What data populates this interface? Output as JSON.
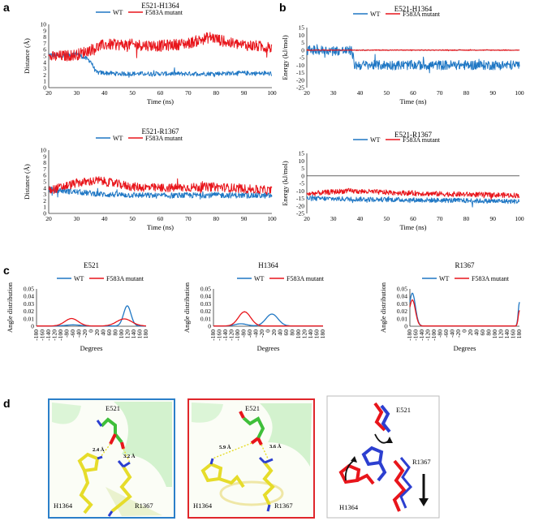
{
  "colors": {
    "wt": "#1f77c4",
    "mut": "#e8151b",
    "box_d1": "#2b7fc9",
    "box_d2": "#e0262b",
    "box_d3": "#bbbbbb"
  },
  "panel_letters": {
    "a": "a",
    "b": "b",
    "c": "c",
    "d": "d"
  },
  "legend": {
    "wt": "WT",
    "mut": "F583A mutant"
  },
  "chart_data": [
    {
      "id": "a1",
      "type": "line",
      "title": "E521-H1364",
      "xlabel": "Time (ns)",
      "ylabel": "Distance (Å)",
      "xlim": [
        20,
        100
      ],
      "ylim": [
        0,
        10
      ],
      "xticks": [
        20,
        30,
        40,
        50,
        60,
        70,
        80,
        90,
        100
      ],
      "yticks": [
        0,
        1,
        2,
        3,
        4,
        5,
        6,
        7,
        8,
        9,
        10
      ],
      "series": [
        {
          "name": "WT",
          "profile": [
            [
              20,
              5.2
            ],
            [
              25,
              5.0
            ],
            [
              30,
              5.4
            ],
            [
              35,
              4.2
            ],
            [
              37,
              2.4
            ],
            [
              45,
              2.2
            ],
            [
              60,
              2.2
            ],
            [
              75,
              2.2
            ],
            [
              90,
              2.3
            ],
            [
              100,
              2.2
            ]
          ],
          "noise": 0.35
        },
        {
          "name": "F583A mutant",
          "profile": [
            [
              20,
              4.8
            ],
            [
              30,
              5.2
            ],
            [
              40,
              6.8
            ],
            [
              50,
              6.8
            ],
            [
              60,
              6.6
            ],
            [
              70,
              7.0
            ],
            [
              78,
              8.0
            ],
            [
              85,
              7.0
            ],
            [
              100,
              6.3
            ]
          ],
          "noise": 0.9
        }
      ]
    },
    {
      "id": "a2",
      "type": "line",
      "title": "E521-R1367",
      "xlabel": "Time (ns)",
      "ylabel": "Distance (Å)",
      "xlim": [
        20,
        100
      ],
      "ylim": [
        0,
        10
      ],
      "xticks": [
        20,
        30,
        40,
        50,
        60,
        70,
        80,
        90,
        100
      ],
      "yticks": [
        0,
        1,
        2,
        3,
        4,
        5,
        6,
        7,
        8,
        9,
        10
      ],
      "series": [
        {
          "name": "WT",
          "profile": [
            [
              20,
              3.8
            ],
            [
              30,
              3.4
            ],
            [
              40,
              3.0
            ],
            [
              60,
              2.8
            ],
            [
              80,
              2.9
            ],
            [
              100,
              2.8
            ]
          ],
          "noise": 0.45
        },
        {
          "name": "F583A mutant",
          "profile": [
            [
              20,
              3.6
            ],
            [
              30,
              4.8
            ],
            [
              38,
              5.2
            ],
            [
              50,
              4.2
            ],
            [
              60,
              4.0
            ],
            [
              80,
              4.2
            ],
            [
              100,
              3.6
            ]
          ],
          "noise": 0.7
        }
      ]
    },
    {
      "id": "b1",
      "type": "line",
      "title": "E521-H1364",
      "xlabel": "Time (ns)",
      "ylabel": "Energy (kJ/mol)",
      "xlim": [
        20,
        100
      ],
      "ylim": [
        -25,
        15
      ],
      "xticks": [
        20,
        30,
        40,
        50,
        60,
        70,
        80,
        90,
        100
      ],
      "yticks": [
        15,
        10,
        5,
        0,
        -5,
        -10,
        -15,
        -20,
        -25
      ],
      "series": [
        {
          "name": "WT",
          "profile": [
            [
              20,
              0
            ],
            [
              37,
              -0.5
            ],
            [
              38,
              -10
            ],
            [
              50,
              -10
            ],
            [
              70,
              -10
            ],
            [
              100,
              -10
            ]
          ],
          "noise": 3.2
        },
        {
          "name": "F583A mutant",
          "profile": [
            [
              20,
              0
            ],
            [
              100,
              0
            ]
          ],
          "noise": 0.3
        }
      ]
    },
    {
      "id": "b2",
      "type": "line",
      "title": "E521-R1367",
      "xlabel": "Time (ns)",
      "ylabel": "Energy (kJ/mol)",
      "xlim": [
        20,
        100
      ],
      "ylim": [
        -25,
        15
      ],
      "xticks": [
        20,
        30,
        40,
        50,
        60,
        70,
        80,
        90,
        100
      ],
      "yticks": [
        15,
        10,
        5,
        0,
        -5,
        -10,
        -15,
        -20,
        -25
      ],
      "series": [
        {
          "name": "WT",
          "profile": [
            [
              20,
              -15
            ],
            [
              60,
              -16
            ],
            [
              100,
              -17
            ]
          ],
          "noise": 1.6
        },
        {
          "name": "F583A mutant",
          "profile": [
            [
              20,
              -12
            ],
            [
              35,
              -10
            ],
            [
              50,
              -11
            ],
            [
              70,
              -12
            ],
            [
              100,
              -13
            ]
          ],
          "noise": 1.7
        }
      ]
    },
    {
      "id": "c1",
      "type": "line",
      "title": "E521",
      "xlabel": "Degrees",
      "ylabel": "Angle distribution",
      "xlim": [
        -180,
        180
      ],
      "ylim": [
        0,
        0.05
      ],
      "xticks": [
        -180,
        -160,
        -140,
        -120,
        -100,
        -80,
        -60,
        -40,
        -20,
        0,
        20,
        40,
        60,
        80,
        100,
        120,
        140,
        160,
        180
      ],
      "yticks": [
        0,
        0.01,
        0.02,
        0.03,
        0.04,
        0.05
      ],
      "series": [
        {
          "name": "WT",
          "peaks": [
            [
              -60,
              0.0015,
              25
            ],
            [
              118,
              0.027,
              12
            ]
          ]
        },
        {
          "name": "F583A mutant",
          "peaks": [
            [
              -65,
              0.01,
              22
            ],
            [
              108,
              0.0095,
              25
            ]
          ]
        }
      ]
    },
    {
      "id": "c2",
      "type": "line",
      "title": "H1364",
      "xlabel": "Degrees",
      "ylabel": "Angle distribution",
      "xlim": [
        -180,
        180
      ],
      "ylim": [
        0,
        0.05
      ],
      "xticks": [
        -180,
        -160,
        -140,
        -120,
        -100,
        -80,
        -60,
        -40,
        -20,
        0,
        20,
        40,
        60,
        80,
        100,
        120,
        140,
        160,
        180
      ],
      "yticks": [
        0,
        0.01,
        0.02,
        0.03,
        0.04,
        0.05
      ],
      "series": [
        {
          "name": "WT",
          "peaks": [
            [
              -90,
              0.003,
              20
            ],
            [
              12,
              0.016,
              20
            ]
          ]
        },
        {
          "name": "F583A mutant",
          "peaks": [
            [
              -78,
              0.019,
              20
            ]
          ]
        }
      ]
    },
    {
      "id": "c3",
      "type": "line",
      "title": "R1367",
      "xlabel": "Degrees",
      "ylabel": "Angle distribution",
      "xlim": [
        -180,
        180
      ],
      "ylim": [
        0,
        0.05
      ],
      "xticks": [
        -180,
        -160,
        -140,
        -120,
        -100,
        -80,
        -60,
        -40,
        -20,
        0,
        20,
        40,
        60,
        80,
        100,
        120,
        140,
        160,
        180
      ],
      "yticks": [
        0,
        0.01,
        0.02,
        0.03,
        0.04,
        0.05
      ],
      "series": [
        {
          "name": "WT",
          "peaks": [
            [
              -172,
              0.044,
              10
            ],
            [
              180,
              0.032,
              4
            ]
          ]
        },
        {
          "name": "F583A mutant",
          "peaks": [
            [
              -172,
              0.035,
              10
            ],
            [
              180,
              0.021,
              4
            ]
          ]
        }
      ]
    }
  ],
  "panel_d": {
    "box1": {
      "residue_top": "E521",
      "residue_left": "H1364",
      "residue_right": "R1367",
      "dist1": "2.4 Å",
      "dist2": "3.2 Å"
    },
    "box2": {
      "residue_top": "E521",
      "residue_left": "H1364",
      "residue_right": "R1367",
      "dist1": "5.9 Å",
      "dist2": "3.6 Å"
    },
    "box3": {
      "residue_top": "E521",
      "residue_left": "H1364",
      "residue_right": "R1367"
    }
  }
}
